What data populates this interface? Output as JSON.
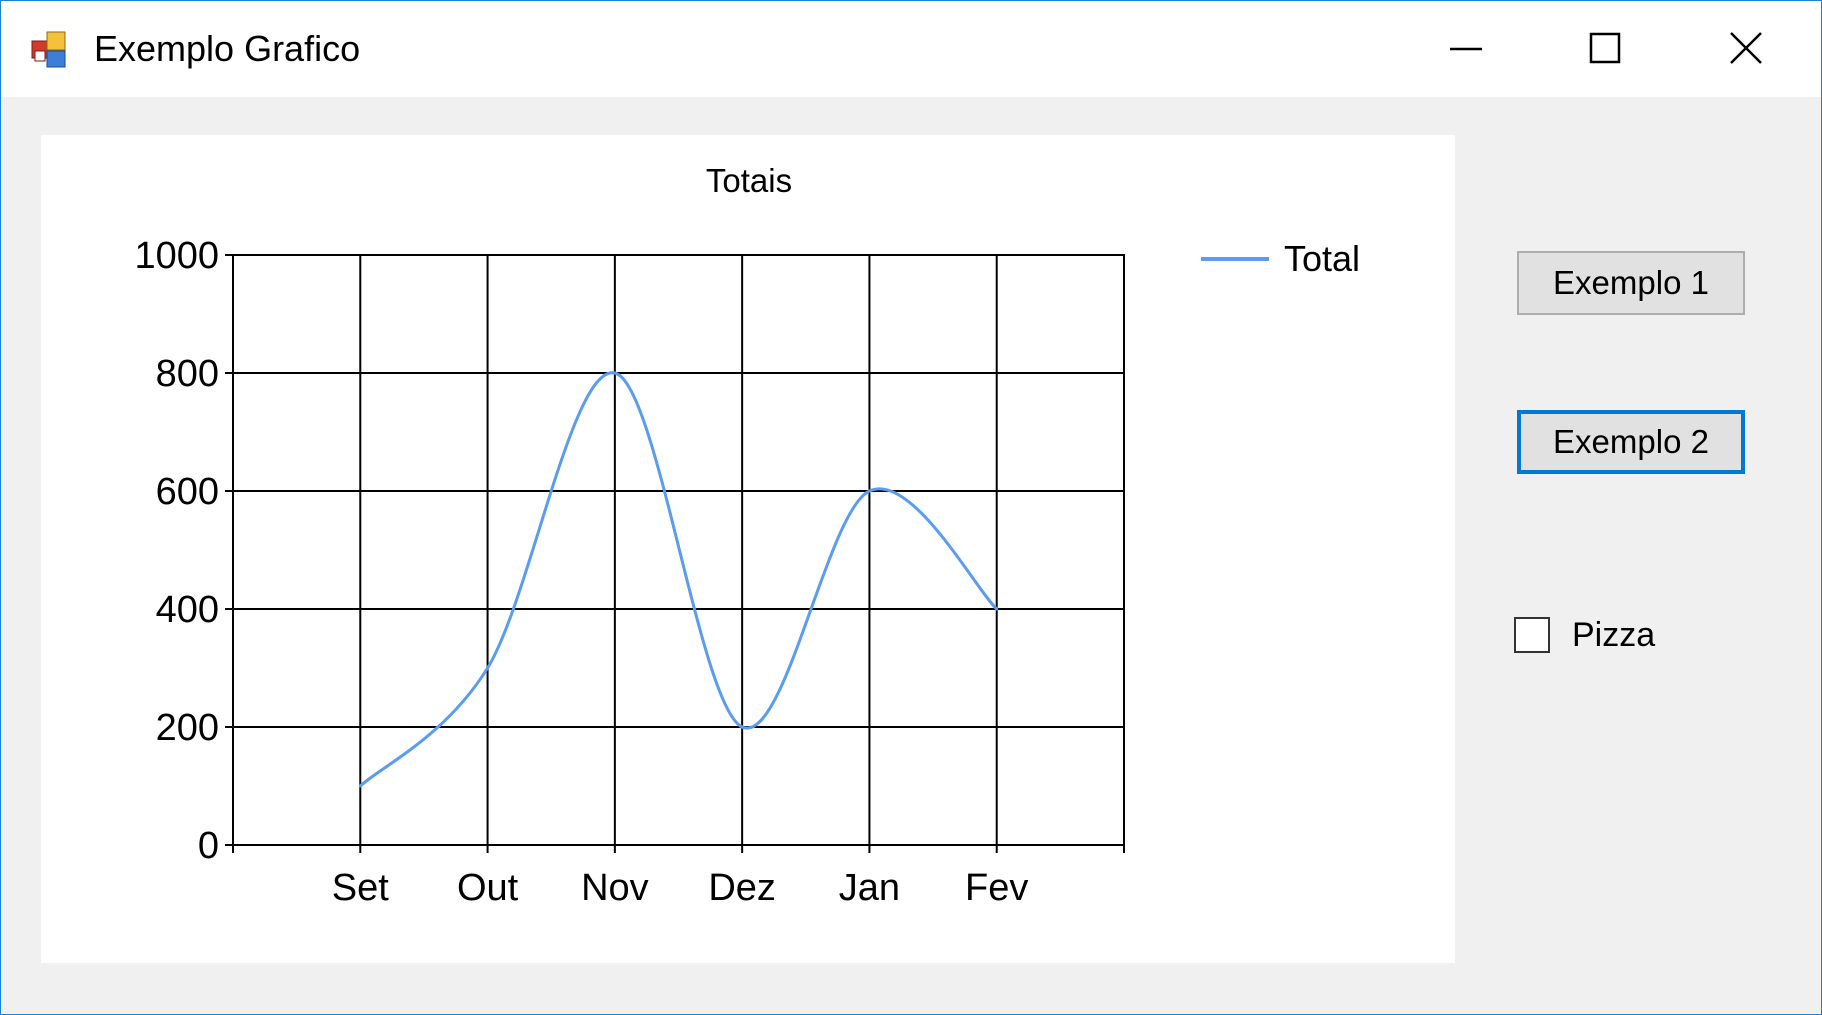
{
  "window": {
    "title": "Exemplo Grafico"
  },
  "icons": {
    "app": "app-icon",
    "minimize": "minimize-icon",
    "maximize": "maximize-icon",
    "close": "close-icon"
  },
  "controls": {
    "button1_label": "Exemplo 1",
    "button2_label": "Exemplo 2",
    "checkbox_label": "Pizza",
    "checkbox_checked": false
  },
  "chart_data": {
    "type": "line",
    "title": "Totais",
    "categories": [
      "Set",
      "Out",
      "Nov",
      "Dez",
      "Jan",
      "Fev"
    ],
    "series": [
      {
        "name": "Total",
        "values": [
          100,
          300,
          800,
          200,
          600,
          400
        ],
        "color": "#5b9bf0"
      }
    ],
    "ylim": [
      0,
      1000
    ],
    "yticks": [
      "0",
      "200",
      "400",
      "600",
      "800",
      "1000"
    ],
    "grid": true,
    "smooth": true,
    "legend": "top-right"
  }
}
